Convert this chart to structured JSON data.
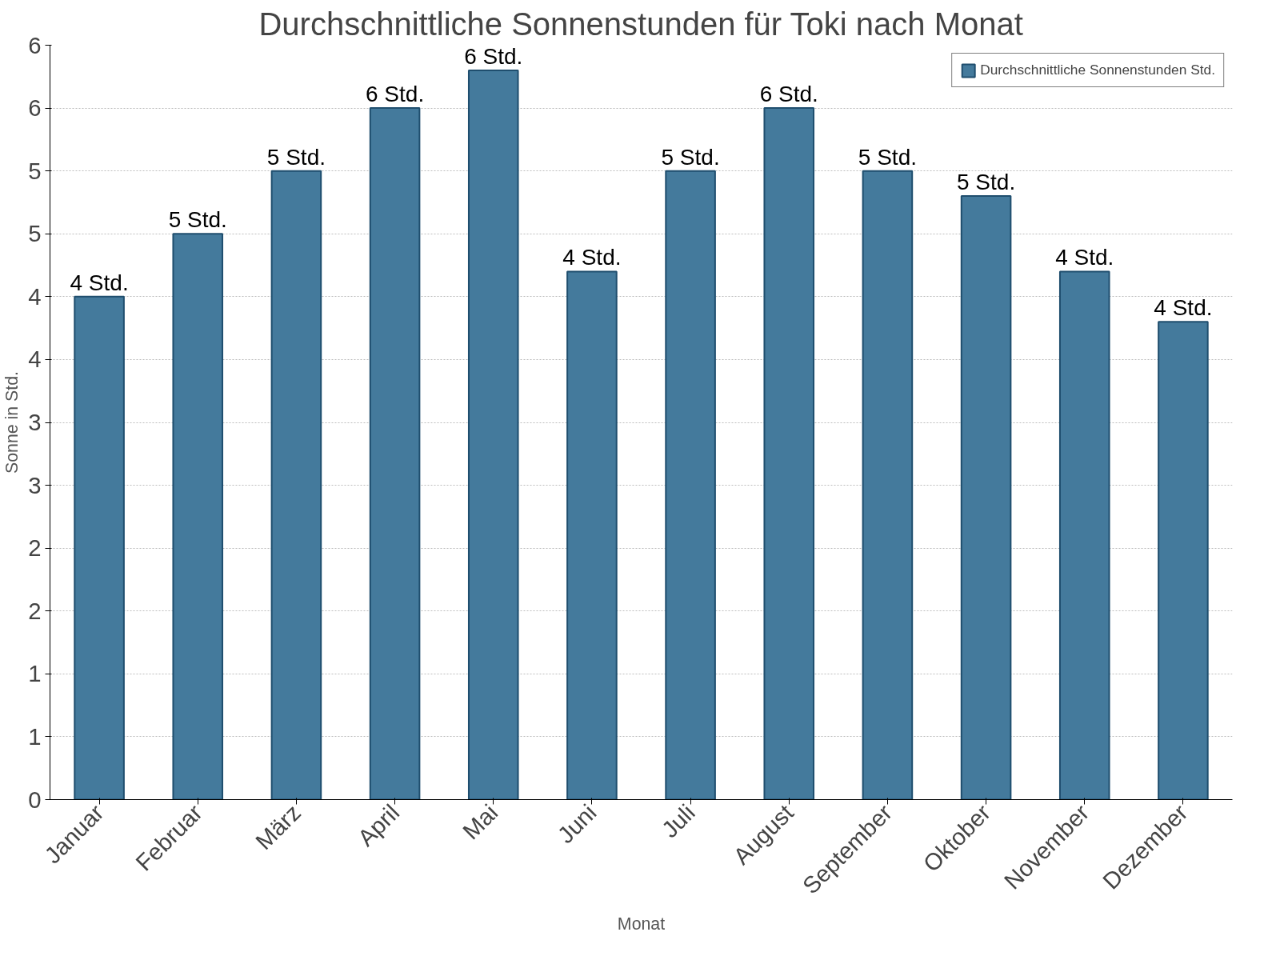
{
  "chart_data": {
    "type": "bar",
    "title": "Durchschnittliche Sonnenstunden für Toki nach Monat",
    "xlabel": "Monat",
    "ylabel": "Sonne in Std.",
    "categories": [
      "Januar",
      "Februar",
      "März",
      "April",
      "Mai",
      "Juni",
      "Juli",
      "August",
      "September",
      "Oktober",
      "November",
      "Dezember"
    ],
    "series": [
      {
        "name": "Durchschnittliche Sonnenstunden Std.",
        "color": "#447a9c",
        "values": [
          4.0,
          4.5,
          5.0,
          5.5,
          5.8,
          4.2,
          5.0,
          5.5,
          5.0,
          4.8,
          4.2,
          3.8
        ],
        "value_labels": [
          "4 Std.",
          "5 Std.",
          "5 Std.",
          "6 Std.",
          "6 Std.",
          "4 Std.",
          "5 Std.",
          "6 Std.",
          "5 Std.",
          "5 Std.",
          "4 Std.",
          "4 Std."
        ]
      }
    ],
    "ylim": [
      0,
      6
    ],
    "yticks": [
      0,
      {
        "value": 0.5,
        "label": "1"
      },
      1,
      {
        "value": 1.5,
        "label": "2"
      },
      2,
      {
        "value": 2.5,
        "label": "3"
      },
      3,
      {
        "value": 3.5,
        "label": "4"
      },
      4,
      {
        "value": 4.5,
        "label": "5"
      },
      5,
      {
        "value": 5.5,
        "label": "6"
      },
      6
    ],
    "grid": "y",
    "legend": "top right"
  }
}
